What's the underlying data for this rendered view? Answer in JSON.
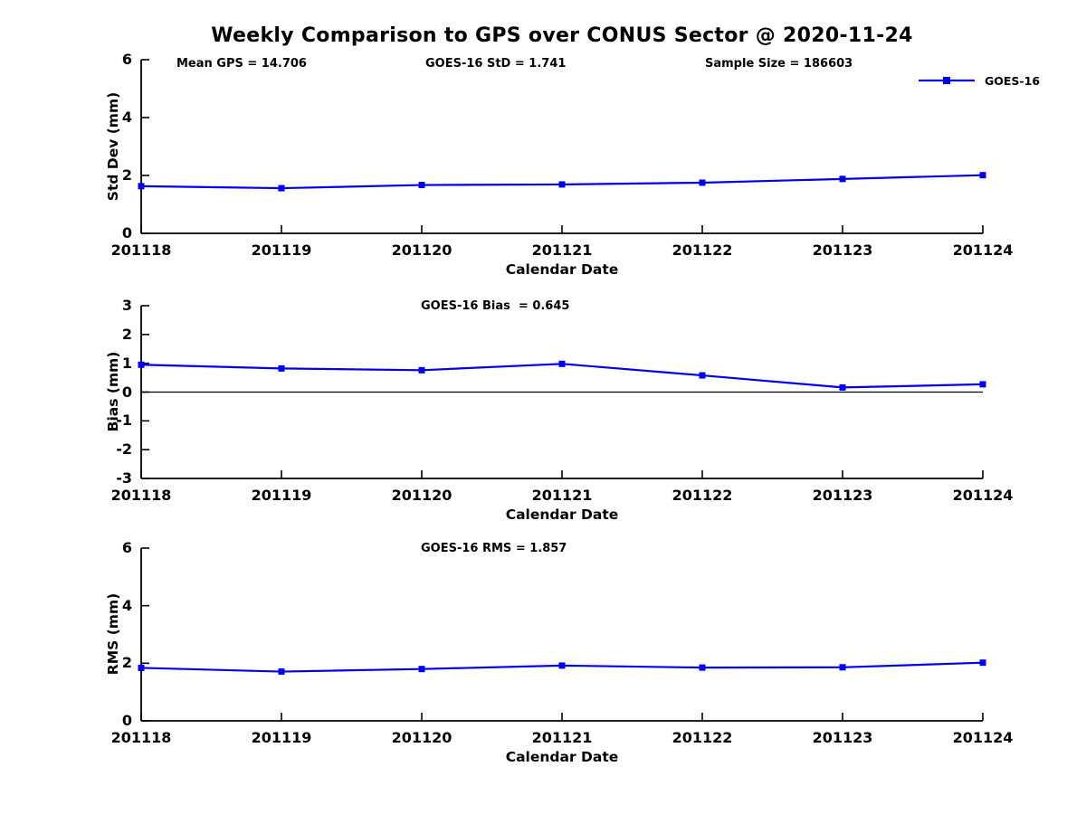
{
  "title": "Weekly Comparison to GPS over CONUS Sector @ 2020-11-24",
  "legend": {
    "label": "GOES-16"
  },
  "colors": {
    "series": "#0000EE",
    "axis": "#000000",
    "text": "#000000",
    "zero_line": "#000000",
    "background": "#FFFFFF"
  },
  "chart_data": [
    {
      "type": "line",
      "name": "std-dev",
      "marker": "square",
      "ylabel": "Std Dev (mm)",
      "xlabel": "Calendar Date",
      "categories": [
        "201118",
        "201119",
        "201120",
        "201121",
        "201122",
        "201123",
        "201124"
      ],
      "series": [
        {
          "name": "GOES-16",
          "values": [
            1.63,
            1.56,
            1.67,
            1.69,
            1.75,
            1.88,
            2.01
          ]
        }
      ],
      "ylim": [
        0,
        6
      ],
      "yticks": [
        6,
        4,
        2,
        0
      ],
      "annotations": [
        "Mean GPS = 14.706",
        "GOES-16 StD = 1.741",
        "Sample Size = 186603"
      ],
      "legend_position": "top-right",
      "grid": false,
      "zero_line": false
    },
    {
      "type": "line",
      "name": "bias",
      "marker": "square",
      "ylabel": "Bias (mm)",
      "xlabel": "Calendar Date",
      "categories": [
        "201118",
        "201119",
        "201120",
        "201121",
        "201122",
        "201123",
        "201124"
      ],
      "series": [
        {
          "name": "GOES-16",
          "values": [
            0.95,
            0.82,
            0.76,
            0.98,
            0.58,
            0.16,
            0.27
          ]
        }
      ],
      "ylim": [
        -3,
        3
      ],
      "yticks": [
        3,
        2,
        1,
        0,
        -1,
        -2,
        -3
      ],
      "annotations": [
        "GOES-16 Bias  = 0.645"
      ],
      "grid": false,
      "zero_line": true
    },
    {
      "type": "line",
      "name": "rms",
      "marker": "square",
      "ylabel": "RMS (mm)",
      "xlabel": "Calendar Date",
      "categories": [
        "201118",
        "201119",
        "201120",
        "201121",
        "201122",
        "201123",
        "201124"
      ],
      "series": [
        {
          "name": "GOES-16",
          "values": [
            1.84,
            1.71,
            1.8,
            1.92,
            1.85,
            1.86,
            2.02
          ]
        }
      ],
      "ylim": [
        0,
        6
      ],
      "yticks": [
        6,
        4,
        2,
        0
      ],
      "annotations": [
        "GOES-16 RMS = 1.857"
      ],
      "grid": false,
      "zero_line": false
    }
  ]
}
